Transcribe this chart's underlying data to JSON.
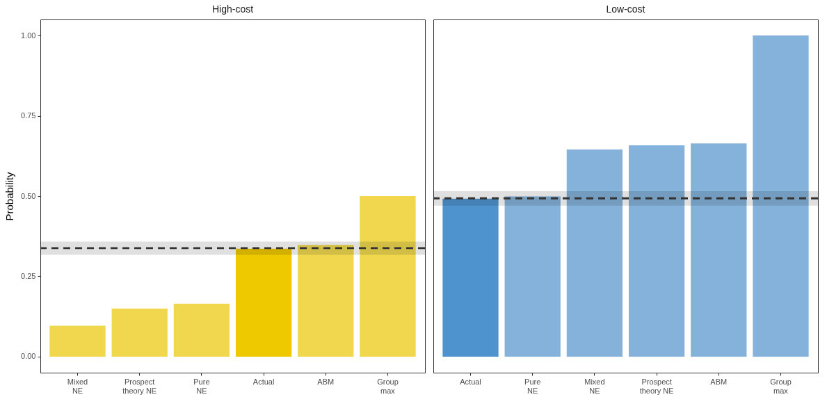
{
  "chart_data": [
    {
      "type": "bar",
      "title": "High-cost",
      "ylabel": "Probability",
      "categories": [
        "Mixed\nNE",
        "Prospect\ntheory NE",
        "Pure\nNE",
        "Actual",
        "ABM",
        "Group\nmax"
      ],
      "values": [
        0.096,
        0.15,
        0.165,
        0.336,
        0.348,
        0.5
      ],
      "colors": [
        "#f0d74e",
        "#f0d74e",
        "#f0d74e",
        "#eec900",
        "#f0d74e",
        "#f0d74e"
      ],
      "ylim": [
        -0.05,
        1.05
      ],
      "yticks": [
        {
          "value": 0,
          "label": "0.00"
        },
        {
          "value": 0.25,
          "label": "0.25"
        },
        {
          "value": 0.5,
          "label": "0.50"
        },
        {
          "value": 0.75,
          "label": "0.75"
        },
        {
          "value": 1,
          "label": "1.00"
        }
      ],
      "ref_lines": [
        {
          "axis": "y",
          "value": 0.338,
          "line_style": "dashed",
          "color": "#333333"
        }
      ],
      "bands": [
        {
          "axis": "y",
          "from": 0.317,
          "to": 0.358,
          "color": "#e0e0e0"
        }
      ],
      "grid": false
    },
    {
      "type": "bar",
      "title": "Low-cost",
      "categories": [
        "Actual",
        "Pure\nNE",
        "Mixed\nNE",
        "Prospect\ntheory NE",
        "ABM",
        "Group\nmax"
      ],
      "values": [
        0.492,
        0.499,
        0.645,
        0.658,
        0.664,
        1.0
      ],
      "colors": [
        "#4e93cd",
        "#84b2da",
        "#84b2da",
        "#84b2da",
        "#84b2da",
        "#84b2da"
      ],
      "ylim": [
        -0.05,
        1.05
      ],
      "ref_lines": [
        {
          "axis": "y",
          "value": 0.493,
          "line_style": "dashed",
          "color": "#333333"
        }
      ],
      "bands": [
        {
          "axis": "y",
          "from": 0.47,
          "to": 0.515,
          "color": "#e0e0e0"
        }
      ],
      "grid": false,
      "tick_labels": "x"
    }
  ]
}
